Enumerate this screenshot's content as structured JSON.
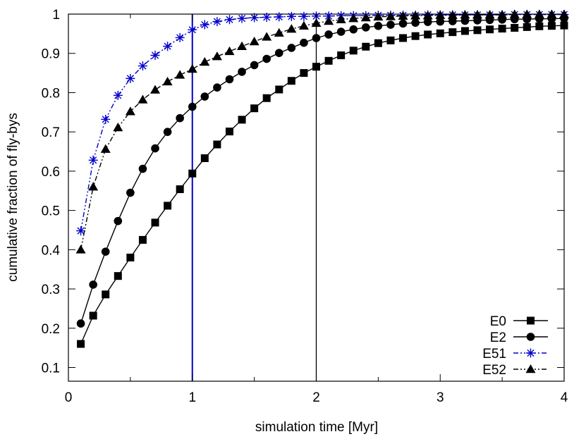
{
  "chart_data": {
    "type": "line",
    "xlabel": "simulation time [Myr]",
    "ylabel": "cumulative fraction of fly-bys",
    "xlim": [
      0,
      4
    ],
    "ylim": [
      0.065,
      1
    ],
    "x_ticks": [
      0,
      1,
      2,
      3,
      4
    ],
    "x_tick_labels": [
      "0",
      "1",
      "2",
      "3",
      "4"
    ],
    "x_minor_ticks": [
      0.5,
      1.5,
      2.5,
      3.5
    ],
    "y_ticks": [
      0.1,
      0.2,
      0.3,
      0.4,
      0.5,
      0.6,
      0.7,
      0.8,
      0.9,
      1
    ],
    "y_tick_labels": [
      "0.1",
      "0.2",
      "0.3",
      "0.4",
      "0.5",
      "0.6",
      "0.7",
      "0.8",
      "0.9",
      "1"
    ],
    "grid": false,
    "legend_position": "bottom-right",
    "vertical_lines": [
      {
        "x": 1,
        "color": "#0000cc"
      },
      {
        "x": 2,
        "color": "#000000"
      }
    ],
    "x": [
      0.1,
      0.2,
      0.3,
      0.4,
      0.5,
      0.6,
      0.7,
      0.8,
      0.9,
      1.0,
      1.1,
      1.2,
      1.3,
      1.4,
      1.5,
      1.6,
      1.7,
      1.8,
      1.9,
      2.0,
      2.1,
      2.2,
      2.3,
      2.4,
      2.5,
      2.6,
      2.7,
      2.8,
      2.9,
      3.0,
      3.1,
      3.2,
      3.3,
      3.4,
      3.5,
      3.6,
      3.7,
      3.8,
      3.9,
      4.0
    ],
    "series": [
      {
        "name": "E0",
        "color": "#000000",
        "marker": "square",
        "dash": "solid",
        "values": [
          0.16,
          0.232,
          0.286,
          0.333,
          0.38,
          0.425,
          0.469,
          0.512,
          0.554,
          0.594,
          0.633,
          0.668,
          0.701,
          0.731,
          0.76,
          0.786,
          0.808,
          0.83,
          0.85,
          0.866,
          0.881,
          0.895,
          0.907,
          0.917,
          0.926,
          0.933,
          0.939,
          0.944,
          0.948,
          0.951,
          0.954,
          0.957,
          0.959,
          0.961,
          0.963,
          0.965,
          0.967,
          0.969,
          0.97,
          0.971
        ]
      },
      {
        "name": "E2",
        "color": "#000000",
        "marker": "circle",
        "dash": "solid",
        "values": [
          0.212,
          0.311,
          0.395,
          0.473,
          0.545,
          0.606,
          0.658,
          0.7,
          0.735,
          0.764,
          0.79,
          0.813,
          0.834,
          0.853,
          0.87,
          0.886,
          0.901,
          0.914,
          0.927,
          0.939,
          0.948,
          0.955,
          0.961,
          0.966,
          0.97,
          0.973,
          0.976,
          0.978,
          0.98,
          0.981,
          0.982,
          0.983,
          0.984,
          0.985,
          0.986,
          0.987,
          0.987,
          0.988,
          0.988,
          0.989
        ]
      },
      {
        "name": "E51",
        "color": "#0000cc",
        "marker": "star",
        "dash": "dash-dot-dot",
        "values": [
          0.448,
          0.628,
          0.732,
          0.793,
          0.836,
          0.868,
          0.895,
          0.918,
          0.94,
          0.96,
          0.973,
          0.981,
          0.986,
          0.989,
          0.991,
          0.992,
          0.993,
          0.994,
          0.994,
          0.995,
          0.995,
          0.996,
          0.996,
          0.996,
          0.997,
          0.997,
          0.997,
          0.997,
          0.998,
          0.998,
          0.998,
          0.998,
          0.998,
          0.998,
          0.998,
          0.999,
          0.999,
          0.999,
          0.999,
          0.999
        ]
      },
      {
        "name": "E52",
        "color": "#000000",
        "marker": "triangle",
        "dash": "dash-dot-dot",
        "values": [
          0.4,
          0.56,
          0.656,
          0.711,
          0.752,
          0.782,
          0.807,
          0.828,
          0.845,
          0.86,
          0.878,
          0.892,
          0.905,
          0.918,
          0.93,
          0.942,
          0.952,
          0.962,
          0.97,
          0.977,
          0.982,
          0.986,
          0.989,
          0.991,
          0.993,
          0.994,
          0.995,
          0.996,
          0.996,
          0.997,
          0.997,
          0.998,
          0.998,
          0.998,
          0.998,
          0.999,
          0.999,
          0.999,
          0.999,
          0.999
        ]
      }
    ]
  }
}
